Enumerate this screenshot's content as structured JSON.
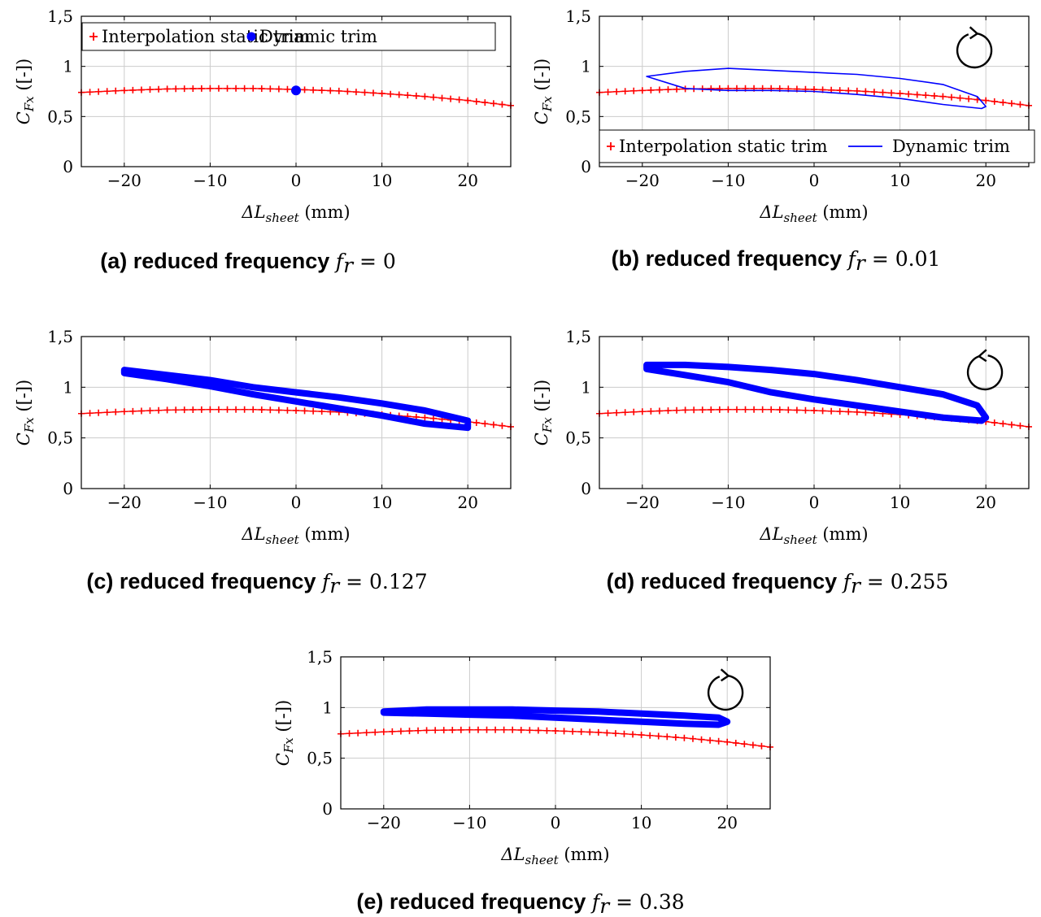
{
  "chart_data": [
    {
      "id": "a",
      "type": "line",
      "caption_tag": "(a) reduced frequency",
      "caption_math": "f_r = 0",
      "xlabel": "ΔL_sheet (mm)",
      "ylabel": "C_Fx ([-])",
      "xlim": [
        -25,
        25
      ],
      "ylim": [
        0,
        1.5
      ],
      "xticks": [
        -20,
        -10,
        0,
        10,
        20
      ],
      "yticks": [
        0,
        0.5,
        1,
        1.5
      ],
      "xtick_labels": [
        "−20",
        "−10",
        "0",
        "10",
        "20"
      ],
      "ytick_labels": [
        "0",
        "0,5",
        "1",
        "1,5"
      ],
      "grid": true,
      "legend": "top-left",
      "legend_entries": [
        "Interpolation static trim",
        "Dynamic trim"
      ],
      "rotation_arrow": "none",
      "static_series": {
        "name": "Interpolation static trim",
        "color": "#ff0000",
        "x": [
          -25,
          -20,
          -15,
          -10,
          -5,
          0,
          5,
          10,
          15,
          20,
          25
        ],
        "y": [
          0.74,
          0.76,
          0.775,
          0.78,
          0.78,
          0.77,
          0.755,
          0.73,
          0.7,
          0.66,
          0.61
        ]
      },
      "dynamic_series": {
        "name": "Dynamic trim",
        "color": "#0000ff",
        "style": "point",
        "x": [
          0
        ],
        "y": [
          0.76
        ]
      }
    },
    {
      "id": "b",
      "type": "line",
      "caption_tag": "(b) reduced frequency",
      "caption_math": "f_r = 0.01",
      "xlabel": "ΔL_sheet (mm)",
      "ylabel": "C_Fx ([-])",
      "xlim": [
        -25,
        25
      ],
      "ylim": [
        0,
        1.5
      ],
      "xticks": [
        -20,
        -10,
        0,
        10,
        20
      ],
      "yticks": [
        0,
        0.5,
        1,
        1.5
      ],
      "xtick_labels": [
        "−20",
        "−10",
        "0",
        "10",
        "20"
      ],
      "ytick_labels": [
        "0",
        "0,5",
        "1",
        "1,5"
      ],
      "grid": true,
      "legend": "bottom",
      "legend_entries": [
        "Interpolation static trim",
        "Dynamic trim"
      ],
      "rotation_arrow": "counterclockwise",
      "static_series": {
        "name": "Interpolation static trim",
        "color": "#ff0000",
        "x": [
          -25,
          -20,
          -15,
          -10,
          -5,
          0,
          5,
          10,
          15,
          20,
          25
        ],
        "y": [
          0.74,
          0.76,
          0.775,
          0.78,
          0.78,
          0.77,
          0.755,
          0.73,
          0.7,
          0.66,
          0.61
        ]
      },
      "dynamic_series": {
        "name": "Dynamic trim",
        "color": "#0000ff",
        "style": "thin-loop",
        "x": [
          -19.5,
          -15,
          -10,
          -5,
          0,
          5,
          10,
          15,
          19,
          20,
          19.5,
          15,
          10,
          5,
          0,
          -5,
          -10,
          -15,
          -19.5
        ],
        "y": [
          0.9,
          0.95,
          0.98,
          0.96,
          0.94,
          0.92,
          0.88,
          0.82,
          0.7,
          0.6,
          0.58,
          0.62,
          0.68,
          0.72,
          0.75,
          0.76,
          0.76,
          0.78,
          0.9
        ]
      }
    },
    {
      "id": "c",
      "type": "line",
      "caption_tag": "(c) reduced frequency",
      "caption_math": "f_r = 0.127",
      "xlabel": "ΔL_sheet (mm)",
      "ylabel": "C_Fx ([-])",
      "xlim": [
        -25,
        25
      ],
      "ylim": [
        0,
        1.5
      ],
      "xticks": [
        -20,
        -10,
        0,
        10,
        20
      ],
      "yticks": [
        0,
        0.5,
        1,
        1.5
      ],
      "xtick_labels": [
        "−20",
        "−10",
        "0",
        "10",
        "20"
      ],
      "ytick_labels": [
        "0",
        "0,5",
        "1",
        "1,5"
      ],
      "grid": true,
      "legend": "none",
      "legend_entries": [],
      "rotation_arrow": "none",
      "static_series": {
        "name": "Interpolation static trim",
        "color": "#ff0000",
        "x": [
          -25,
          -20,
          -15,
          -10,
          -5,
          0,
          5,
          10,
          15,
          20,
          25
        ],
        "y": [
          0.74,
          0.76,
          0.775,
          0.78,
          0.78,
          0.77,
          0.755,
          0.73,
          0.7,
          0.66,
          0.61
        ]
      },
      "dynamic_series": {
        "name": "Dynamic trim",
        "color": "#0000ff",
        "style": "thick-loop",
        "x": [
          -20,
          -15,
          -10,
          -5,
          0,
          5,
          10,
          15,
          20,
          20,
          15,
          10,
          5,
          0,
          -5,
          -10,
          -15,
          -20
        ],
        "y": [
          1.17,
          1.12,
          1.07,
          1.0,
          0.95,
          0.9,
          0.84,
          0.77,
          0.67,
          0.6,
          0.64,
          0.72,
          0.79,
          0.86,
          0.93,
          1.01,
          1.08,
          1.14
        ]
      }
    },
    {
      "id": "d",
      "type": "line",
      "caption_tag": "(d) reduced frequency",
      "caption_math": "f_r = 0.255",
      "xlabel": "ΔL_sheet (mm)",
      "ylabel": "C_Fx ([-])",
      "xlim": [
        -25,
        25
      ],
      "ylim": [
        0,
        1.5
      ],
      "xticks": [
        -20,
        -10,
        0,
        10,
        20
      ],
      "yticks": [
        0,
        0.5,
        1,
        1.5
      ],
      "xtick_labels": [
        "−20",
        "−10",
        "0",
        "10",
        "20"
      ],
      "ytick_labels": [
        "0",
        "0,5",
        "1",
        "1,5"
      ],
      "grid": true,
      "legend": "none",
      "legend_entries": [],
      "rotation_arrow": "clockwise",
      "static_series": {
        "name": "Interpolation static trim",
        "color": "#ff0000",
        "x": [
          -25,
          -20,
          -15,
          -10,
          -5,
          0,
          5,
          10,
          15,
          20,
          25
        ],
        "y": [
          0.74,
          0.76,
          0.775,
          0.78,
          0.78,
          0.77,
          0.755,
          0.73,
          0.7,
          0.66,
          0.61
        ]
      },
      "dynamic_series": {
        "name": "Dynamic trim",
        "color": "#0000ff",
        "style": "thick-loop",
        "x": [
          -19.5,
          -15,
          -10,
          -5,
          0,
          5,
          10,
          15,
          19,
          20,
          19.5,
          15,
          10,
          5,
          0,
          -5,
          -10,
          -15,
          -19.5
        ],
        "y": [
          1.22,
          1.22,
          1.2,
          1.17,
          1.13,
          1.07,
          1.0,
          0.93,
          0.82,
          0.7,
          0.67,
          0.7,
          0.76,
          0.82,
          0.88,
          0.95,
          1.05,
          1.12,
          1.18
        ]
      }
    },
    {
      "id": "e",
      "type": "line",
      "caption_tag": "(e) reduced frequency",
      "caption_math": "f_r = 0.38",
      "xlabel": "ΔL_sheet (mm)",
      "ylabel": "C_Fx ([-])",
      "xlim": [
        -25,
        25
      ],
      "ylim": [
        0,
        1.5
      ],
      "xticks": [
        -20,
        -10,
        0,
        10,
        20
      ],
      "yticks": [
        0,
        0.5,
        1,
        1.5
      ],
      "xtick_labels": [
        "−20",
        "−10",
        "0",
        "10",
        "20"
      ],
      "ytick_labels": [
        "0",
        "0,5",
        "1",
        "1,5"
      ],
      "grid": true,
      "legend": "none",
      "legend_entries": [],
      "rotation_arrow": "counterclockwise",
      "static_series": {
        "name": "Interpolation static trim",
        "color": "#ff0000",
        "x": [
          -25,
          -20,
          -15,
          -10,
          -5,
          0,
          5,
          10,
          15,
          20,
          25
        ],
        "y": [
          0.74,
          0.76,
          0.775,
          0.78,
          0.78,
          0.77,
          0.755,
          0.73,
          0.7,
          0.66,
          0.61
        ]
      },
      "dynamic_series": {
        "name": "Dynamic trim",
        "color": "#0000ff",
        "style": "thick-loop",
        "x": [
          -20,
          -15,
          -10,
          -5,
          0,
          5,
          10,
          15,
          19,
          20,
          19,
          15,
          10,
          5,
          0,
          -5,
          -10,
          -15,
          -20
        ],
        "y": [
          0.96,
          0.98,
          0.98,
          0.98,
          0.97,
          0.96,
          0.94,
          0.92,
          0.9,
          0.86,
          0.83,
          0.84,
          0.86,
          0.88,
          0.9,
          0.92,
          0.93,
          0.94,
          0.95
        ]
      }
    }
  ]
}
